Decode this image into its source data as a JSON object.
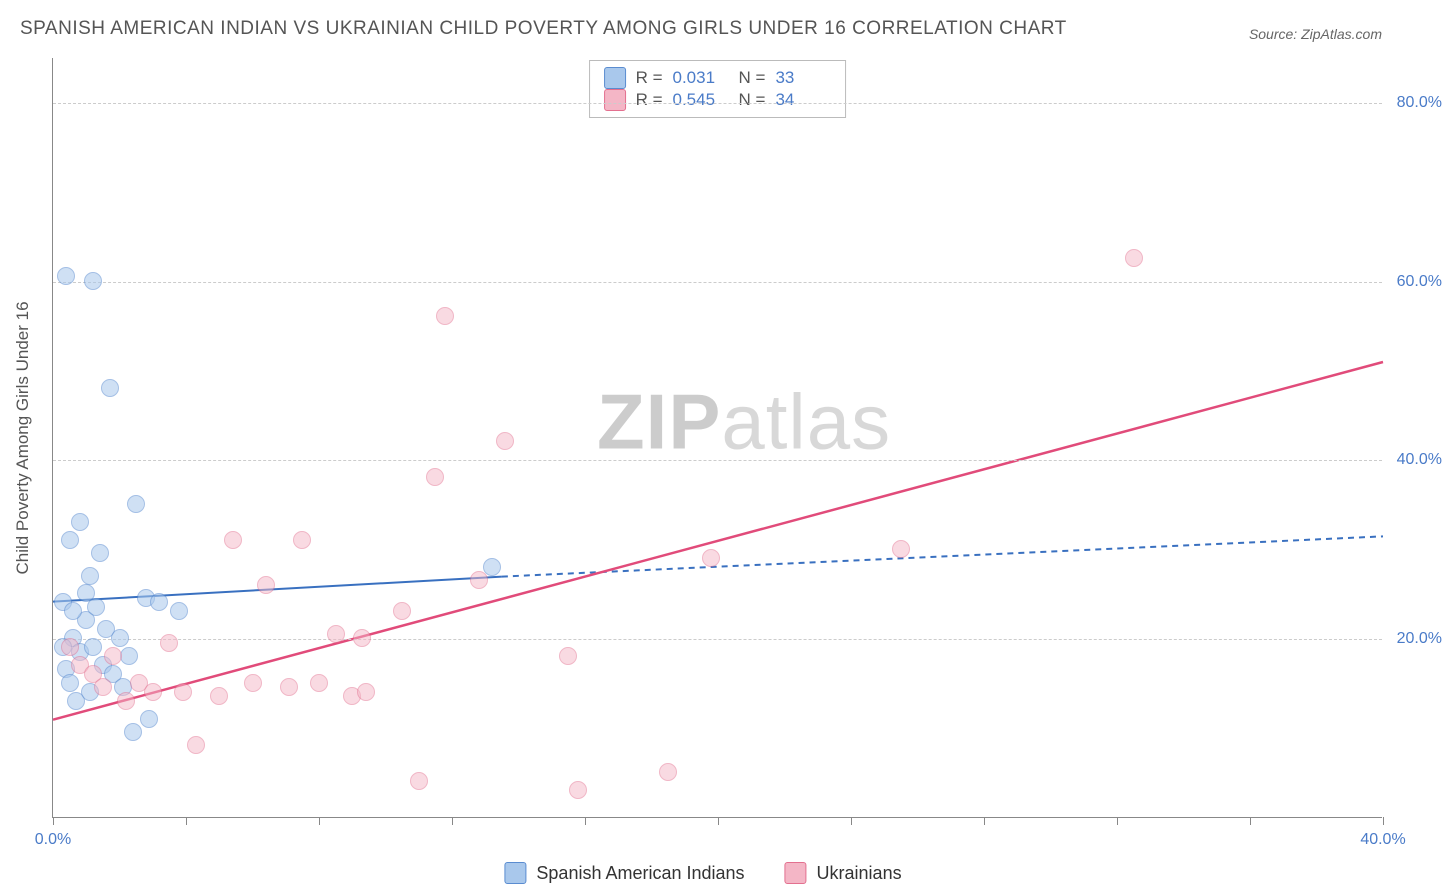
{
  "title": "SPANISH AMERICAN INDIAN VS UKRAINIAN CHILD POVERTY AMONG GIRLS UNDER 16 CORRELATION CHART",
  "source": "Source: ZipAtlas.com",
  "y_axis_label": "Child Poverty Among Girls Under 16",
  "watermark_bold": "ZIP",
  "watermark_rest": "atlas",
  "chart": {
    "type": "scatter",
    "xlim": [
      0,
      40
    ],
    "ylim": [
      0,
      85
    ],
    "x_ticks": [
      0,
      4,
      8,
      12,
      16,
      20,
      24,
      28,
      32,
      36,
      40
    ],
    "x_tick_labels": {
      "0": "0.0%",
      "40": "40.0%"
    },
    "y_gridlines": [
      20,
      40,
      60,
      80
    ],
    "y_tick_labels": {
      "20": "20.0%",
      "40": "40.0%",
      "60": "60.0%",
      "80": "80.0%"
    },
    "background_color": "#ffffff",
    "grid_color": "#cccccc",
    "axis_color": "#888888",
    "label_color": "#4a7bc8",
    "series": {
      "sai": {
        "label": "Spanish American Indians",
        "fill": "#a9c8ec",
        "stroke": "#5a8cd0",
        "fill_opacity": 0.55,
        "marker_radius": 9,
        "R": "0.031",
        "N": "33",
        "trend": {
          "solid_x": [
            0,
            13.5
          ],
          "solid_y": [
            24.2,
            27.0
          ],
          "dash_x": [
            13.5,
            40
          ],
          "dash_y": [
            27.0,
            31.5
          ],
          "color": "#3970c0",
          "width": 2,
          "dash": "6,5"
        },
        "points": [
          [
            0.3,
            24.0
          ],
          [
            0.4,
            60.5
          ],
          [
            1.2,
            60.0
          ],
          [
            0.8,
            33.0
          ],
          [
            1.1,
            27.0
          ],
          [
            1.4,
            29.5
          ],
          [
            0.5,
            31.0
          ],
          [
            0.6,
            20.0
          ],
          [
            0.8,
            18.5
          ],
          [
            1.0,
            22.0
          ],
          [
            1.2,
            19.0
          ],
          [
            1.5,
            17.0
          ],
          [
            1.8,
            16.0
          ],
          [
            2.1,
            14.5
          ],
          [
            0.3,
            19.0
          ],
          [
            0.4,
            16.5
          ],
          [
            0.5,
            15.0
          ],
          [
            0.7,
            13.0
          ],
          [
            1.0,
            25.0
          ],
          [
            1.3,
            23.5
          ],
          [
            1.6,
            21.0
          ],
          [
            2.0,
            20.0
          ],
          [
            2.3,
            18.0
          ],
          [
            2.8,
            24.5
          ],
          [
            3.2,
            24.0
          ],
          [
            3.8,
            23.0
          ],
          [
            2.5,
            35.0
          ],
          [
            1.7,
            48.0
          ],
          [
            2.4,
            9.5
          ],
          [
            2.9,
            11.0
          ],
          [
            0.6,
            23.0
          ],
          [
            1.1,
            14.0
          ],
          [
            13.2,
            28.0
          ]
        ]
      },
      "ukr": {
        "label": "Ukrainians",
        "fill": "#f4b6c6",
        "stroke": "#e3708f",
        "fill_opacity": 0.5,
        "marker_radius": 9,
        "R": "0.545",
        "N": "34",
        "trend": {
          "solid_x": [
            0,
            40
          ],
          "solid_y": [
            11.0,
            51.0
          ],
          "color": "#e14b7a",
          "width": 2.5
        },
        "points": [
          [
            0.5,
            19.0
          ],
          [
            0.8,
            17.0
          ],
          [
            1.2,
            16.0
          ],
          [
            1.5,
            14.5
          ],
          [
            1.8,
            18.0
          ],
          [
            2.2,
            13.0
          ],
          [
            2.6,
            15.0
          ],
          [
            3.0,
            14.0
          ],
          [
            3.5,
            19.5
          ],
          [
            3.9,
            14.0
          ],
          [
            4.3,
            8.0
          ],
          [
            5.0,
            13.5
          ],
          [
            5.4,
            31.0
          ],
          [
            6.0,
            15.0
          ],
          [
            6.4,
            26.0
          ],
          [
            7.1,
            14.5
          ],
          [
            7.5,
            31.0
          ],
          [
            8.0,
            15.0
          ],
          [
            8.5,
            20.5
          ],
          [
            9.0,
            13.5
          ],
          [
            9.3,
            20.0
          ],
          [
            9.4,
            14.0
          ],
          [
            10.5,
            23.0
          ],
          [
            11.5,
            38.0
          ],
          [
            11.8,
            56.0
          ],
          [
            12.8,
            26.5
          ],
          [
            13.6,
            42.0
          ],
          [
            15.5,
            18.0
          ],
          [
            15.8,
            3.0
          ],
          [
            18.5,
            5.0
          ],
          [
            19.8,
            29.0
          ],
          [
            25.5,
            30.0
          ],
          [
            32.5,
            62.5
          ],
          [
            11.0,
            4.0
          ]
        ]
      }
    }
  },
  "legend_rn": {
    "rows": [
      {
        "swatch_fill": "#a9c8ec",
        "swatch_stroke": "#5a8cd0",
        "R_label": "R  =",
        "R": "0.031",
        "N_label": "N  =",
        "N": "33"
      },
      {
        "swatch_fill": "#f4b6c6",
        "swatch_stroke": "#e3708f",
        "R_label": "R  =",
        "R": "0.545",
        "N_label": "N  =",
        "N": "34"
      }
    ]
  },
  "bottom_legend": [
    {
      "fill": "#a9c8ec",
      "stroke": "#5a8cd0",
      "label": "Spanish American Indians"
    },
    {
      "fill": "#f4b6c6",
      "stroke": "#e3708f",
      "label": "Ukrainians"
    }
  ]
}
